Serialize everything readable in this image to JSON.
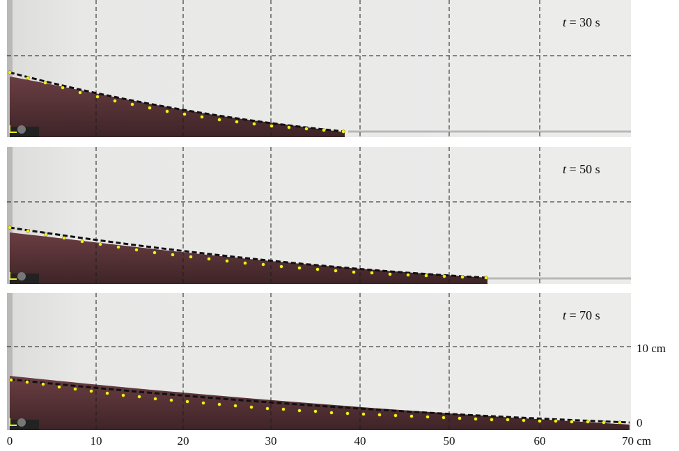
{
  "figure": {
    "axis": {
      "x_ticks": [
        "0",
        "10",
        "20",
        "30",
        "40",
        "50",
        "60",
        "70 cm"
      ],
      "y_ticks": [
        "10 cm",
        "0"
      ],
      "x_range_cm": [
        0,
        70
      ],
      "y_range_cm": [
        0,
        20
      ],
      "grid": true
    },
    "colors": {
      "background": "#e9e9e8",
      "fluid": "#5b3438",
      "grid": "#1c1c1c",
      "markers": "#f4ef1a",
      "fit_line": "#111111"
    },
    "panels": [
      {
        "t_label": "t = 30 s",
        "t_var": "t",
        "t_rest": " = 30 s",
        "front_cm": 38,
        "height_at_origin_cm": 7.2
      },
      {
        "t_label": "t = 50 s",
        "t_var": "t",
        "t_rest": " = 50 s",
        "front_cm": 54,
        "height_at_origin_cm": 5.8
      },
      {
        "t_label": "t = 70 s",
        "t_var": "t",
        "t_rest": " = 70 s",
        "front_cm": 70,
        "height_at_origin_cm": 4.7
      }
    ]
  }
}
